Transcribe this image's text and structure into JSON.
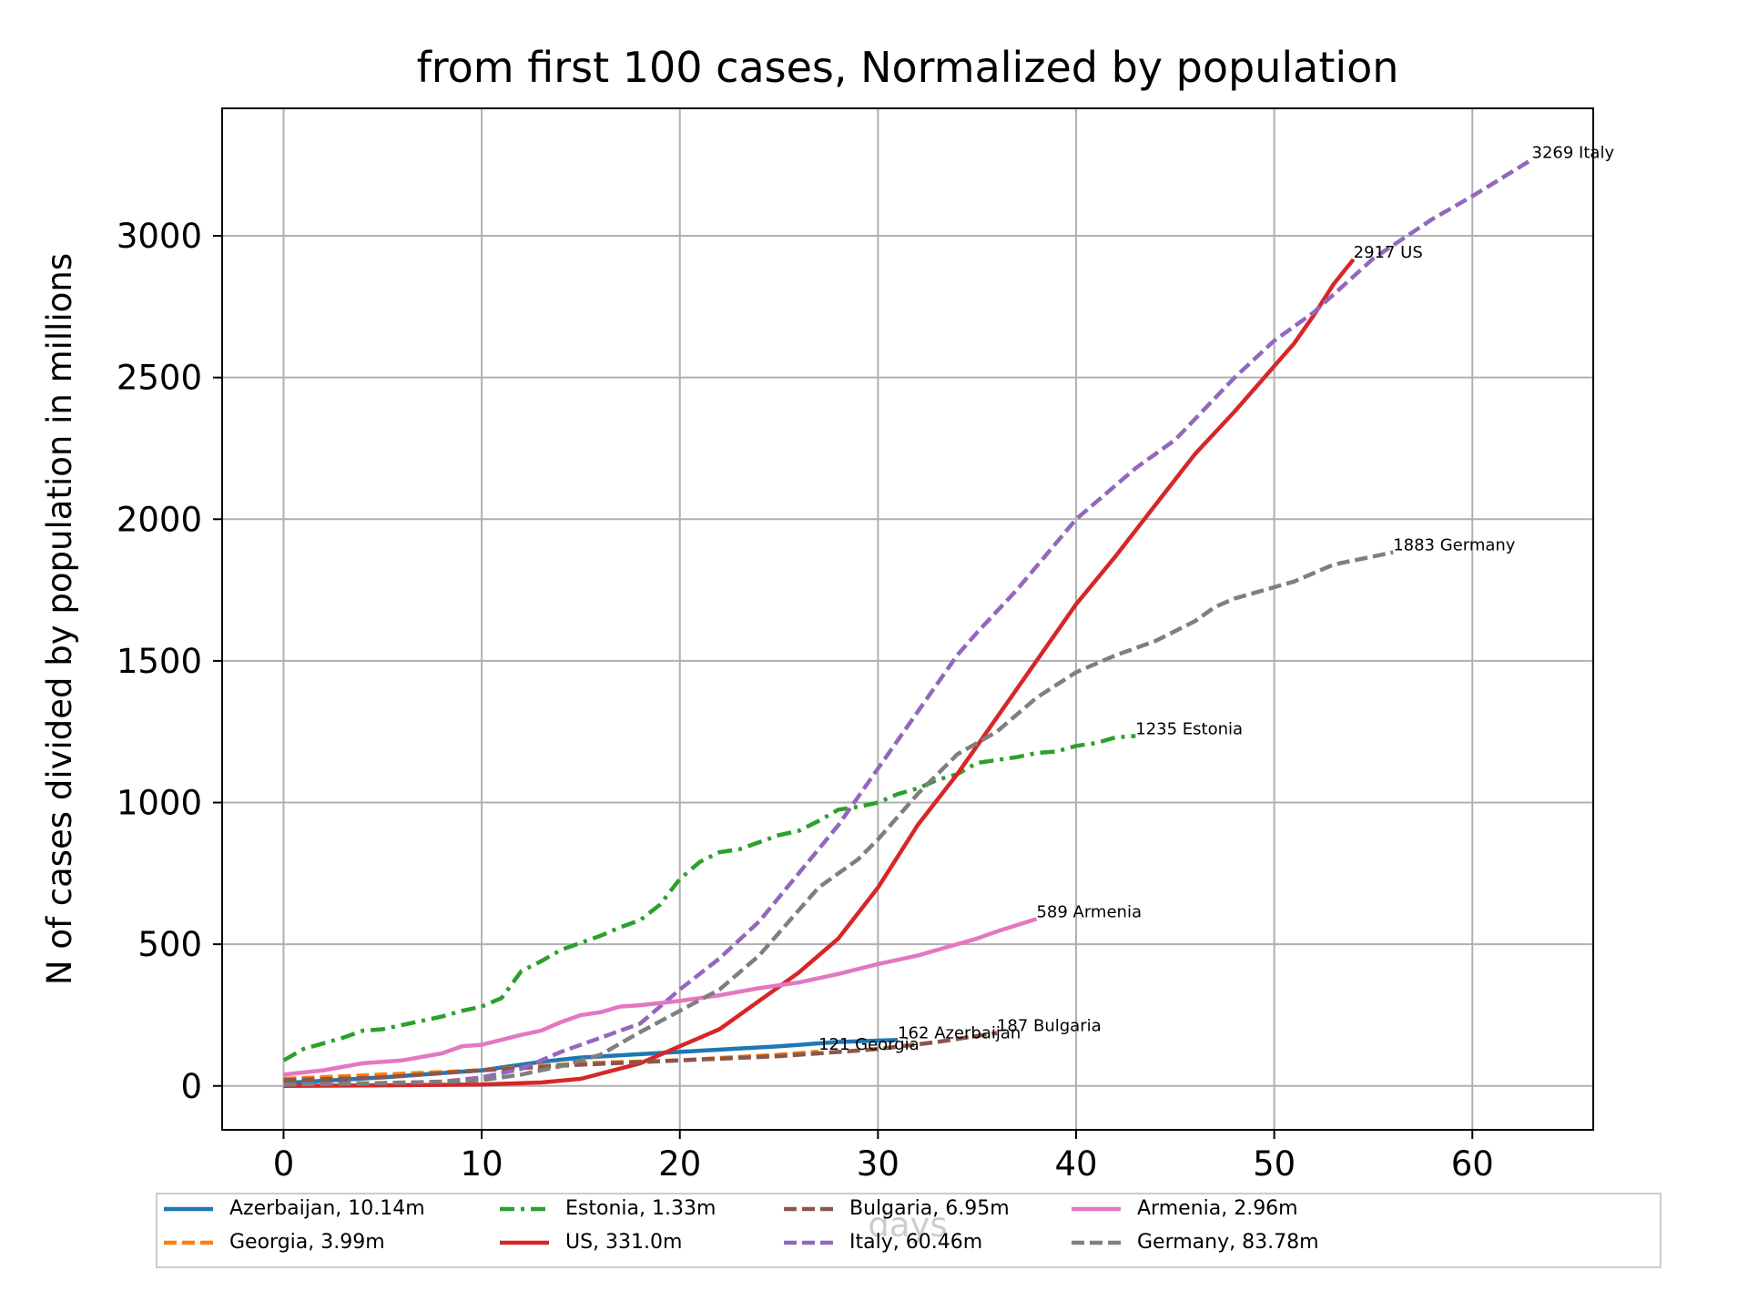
{
  "chart_data": {
    "type": "line",
    "title": "from first 100 cases, Normalized by population",
    "xlabel": "days",
    "ylabel": "N of cases divided by population in millions",
    "xlim": [
      -3.1,
      66.1
    ],
    "ylim": [
      -155,
      3450
    ],
    "x_ticks": [
      0,
      10,
      20,
      30,
      40,
      50,
      60
    ],
    "y_ticks": [
      0,
      500,
      1000,
      1500,
      2000,
      2500,
      3000
    ],
    "grid": true,
    "legend_position": "below the plot, 5 columns",
    "series": [
      {
        "name": "Azerbaijan, 10.14m",
        "color": "#1f77b4",
        "style": "solid",
        "x": [
          0,
          5,
          10,
          13,
          15,
          20,
          25,
          28,
          31
        ],
        "y": [
          10,
          30,
          55,
          85,
          100,
          120,
          140,
          155,
          162
        ],
        "annotation": "162 Azerbaijan"
      },
      {
        "name": "Georgia, 3.99m",
        "color": "#ff7f0e",
        "style": "dashed",
        "x": [
          0,
          5,
          10,
          13,
          15,
          20,
          25,
          27
        ],
        "y": [
          25,
          40,
          55,
          70,
          80,
          90,
          110,
          121
        ],
        "annotation": "121 Georgia"
      },
      {
        "name": "Estonia, 1.33m",
        "color": "#2ca02c",
        "style": "dashdot",
        "x": [
          0,
          1,
          2,
          3,
          4,
          5,
          6,
          7,
          8,
          9,
          10,
          11,
          12,
          13,
          14,
          15,
          16,
          17,
          18,
          19,
          20,
          21,
          22,
          23,
          24,
          25,
          26,
          27,
          28,
          29,
          30,
          31,
          32,
          33,
          34,
          35,
          36,
          37,
          38,
          39,
          40,
          41,
          42,
          43
        ],
        "y": [
          90,
          130,
          150,
          170,
          195,
          200,
          215,
          230,
          245,
          265,
          280,
          310,
          405,
          440,
          480,
          505,
          530,
          560,
          585,
          640,
          730,
          790,
          825,
          835,
          860,
          885,
          900,
          935,
          975,
          985,
          1000,
          1030,
          1050,
          1080,
          1100,
          1140,
          1150,
          1160,
          1175,
          1180,
          1200,
          1210,
          1230,
          1235
        ],
        "annotation": "1235 Estonia"
      },
      {
        "name": "US, 331.0m",
        "color": "#d62728",
        "style": "solid",
        "x": [
          0,
          5,
          10,
          13,
          15,
          18,
          20,
          22,
          24,
          26,
          28,
          30,
          32,
          34,
          36,
          38,
          40,
          42,
          44,
          46,
          48,
          50,
          51,
          52,
          53,
          54
        ],
        "y": [
          0,
          2,
          5,
          12,
          25,
          80,
          140,
          200,
          300,
          400,
          520,
          700,
          920,
          1100,
          1300,
          1500,
          1700,
          1870,
          2050,
          2230,
          2380,
          2540,
          2620,
          2720,
          2830,
          2917
        ],
        "annotation": "2917 US"
      },
      {
        "name": "Bulgaria, 6.95m",
        "color": "#8c564b",
        "style": "dashed",
        "x": [
          0,
          5,
          10,
          15,
          20,
          25,
          30,
          33,
          36
        ],
        "y": [
          20,
          30,
          55,
          75,
          90,
          105,
          130,
          155,
          187
        ],
        "annotation": "187 Bulgaria"
      },
      {
        "name": "Italy, 60.46m",
        "color": "#9467bd",
        "style": "dashed",
        "x": [
          0,
          5,
          8,
          10,
          12,
          14,
          16,
          18,
          20,
          22,
          24,
          26,
          28,
          30,
          32,
          34,
          35,
          37,
          40,
          43,
          45,
          48,
          50,
          52,
          55,
          58,
          60,
          63
        ],
        "y": [
          5,
          10,
          15,
          30,
          60,
          120,
          170,
          220,
          340,
          450,
          580,
          750,
          920,
          1120,
          1320,
          1520,
          1600,
          1750,
          2000,
          2180,
          2280,
          2500,
          2630,
          2730,
          2920,
          3060,
          3140,
          3269
        ],
        "annotation": "3269 Italy"
      },
      {
        "name": "Armenia, 2.96m",
        "color": "#e377c2",
        "style": "solid",
        "x": [
          0,
          2,
          4,
          6,
          8,
          9,
          10,
          12,
          13,
          14,
          15,
          16,
          17,
          18,
          20,
          22,
          24,
          26,
          28,
          30,
          32,
          34,
          35,
          36,
          38
        ],
        "y": [
          40,
          55,
          80,
          90,
          115,
          140,
          145,
          180,
          195,
          225,
          250,
          260,
          280,
          285,
          300,
          320,
          345,
          365,
          395,
          430,
          460,
          500,
          520,
          545,
          589
        ],
        "annotation": "589 Armenia"
      },
      {
        "name": "Germany, 83.78m",
        "color": "#7f7f7f",
        "style": "dashed",
        "x": [
          0,
          5,
          8,
          10,
          12,
          14,
          16,
          18,
          20,
          22,
          24,
          26,
          27,
          29,
          30,
          32,
          34,
          36,
          38,
          40,
          42,
          44,
          46,
          47,
          48,
          50,
          51,
          53,
          56
        ],
        "y": [
          5,
          10,
          15,
          20,
          40,
          70,
          110,
          190,
          265,
          340,
          460,
          620,
          700,
          800,
          870,
          1030,
          1170,
          1250,
          1370,
          1460,
          1520,
          1570,
          1640,
          1690,
          1720,
          1760,
          1780,
          1840,
          1883
        ],
        "annotation": "1883 Germany"
      }
    ]
  }
}
